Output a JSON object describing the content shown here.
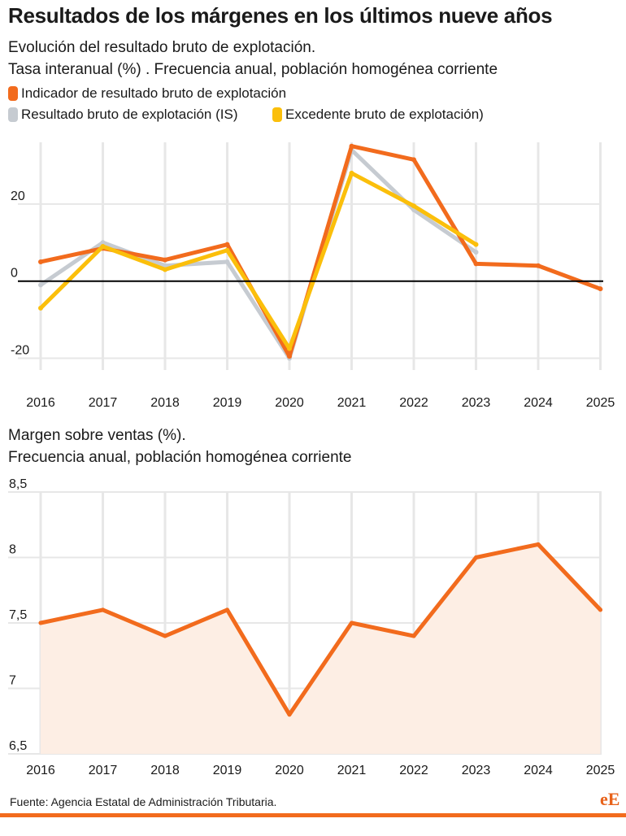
{
  "header": {
    "title": "Resultados de los márgenes en los últimos nueve años"
  },
  "chart1": {
    "subtitle_line1": "Evolución del resultado bruto de explotación.",
    "subtitle_line2": "Tasa interanual (%) . Frecuencia anual, población homogénea corriente",
    "legend": [
      {
        "label": "Indicador de resultado bruto de explotación",
        "color": "#f26b1d"
      },
      {
        "label": "Resultado bruto de explotación (IS)",
        "color": "#c6cbd1"
      },
      {
        "label": "Excedente bruto de explotación)",
        "color": "#fbbf0b"
      }
    ]
  },
  "chart2": {
    "subtitle_line1": "Margen sobre ventas (%).",
    "subtitle_line2": "Frecuencia anual, población homogénea corriente"
  },
  "footer": {
    "source": "Fuente: Agencia Estatal de Administración Tributaria.",
    "logo": "eE"
  },
  "colors": {
    "accent": "#f26b1d",
    "gray": "#c6cbd1",
    "yellow": "#fbbf0b",
    "area": "#fdeee4"
  },
  "chart_data": [
    {
      "type": "line",
      "x": [
        "2016",
        "2017",
        "2018",
        "2019",
        "2020",
        "2021",
        "2022",
        "2023",
        "2024",
        "2025"
      ],
      "y_ticks": [
        "20",
        "0",
        "-20"
      ],
      "ylim": [
        -22,
        36
      ],
      "zero_line": true,
      "series": [
        {
          "name": "Indicador de resultado bruto de explotación",
          "color": "#f26b1d",
          "values": [
            5,
            8.5,
            5.5,
            9.5,
            -19.5,
            35,
            31.5,
            4.5,
            4,
            -2
          ]
        },
        {
          "name": "Resultado bruto de explotación (IS)",
          "color": "#c6cbd1",
          "values": [
            -1,
            10,
            4,
            5,
            -20,
            34,
            18.5,
            7.5,
            null,
            null
          ]
        },
        {
          "name": "Excedente bruto de explotación)",
          "color": "#fbbf0b",
          "values": [
            -7,
            9,
            3,
            8,
            -17.5,
            28,
            19.5,
            9.5,
            null,
            null
          ]
        }
      ]
    },
    {
      "type": "area",
      "x": [
        "2016",
        "2017",
        "2018",
        "2019",
        "2020",
        "2021",
        "2022",
        "2023",
        "2024",
        "2025"
      ],
      "y_ticks": [
        "8,5",
        "8",
        "7,5",
        "7",
        "6,5"
      ],
      "ylim": [
        6.5,
        8.5
      ],
      "series": [
        {
          "color": "#f26b1d",
          "values": [
            7.5,
            7.6,
            7.4,
            7.6,
            6.8,
            7.5,
            7.4,
            8.0,
            8.1,
            7.6
          ]
        }
      ]
    }
  ]
}
